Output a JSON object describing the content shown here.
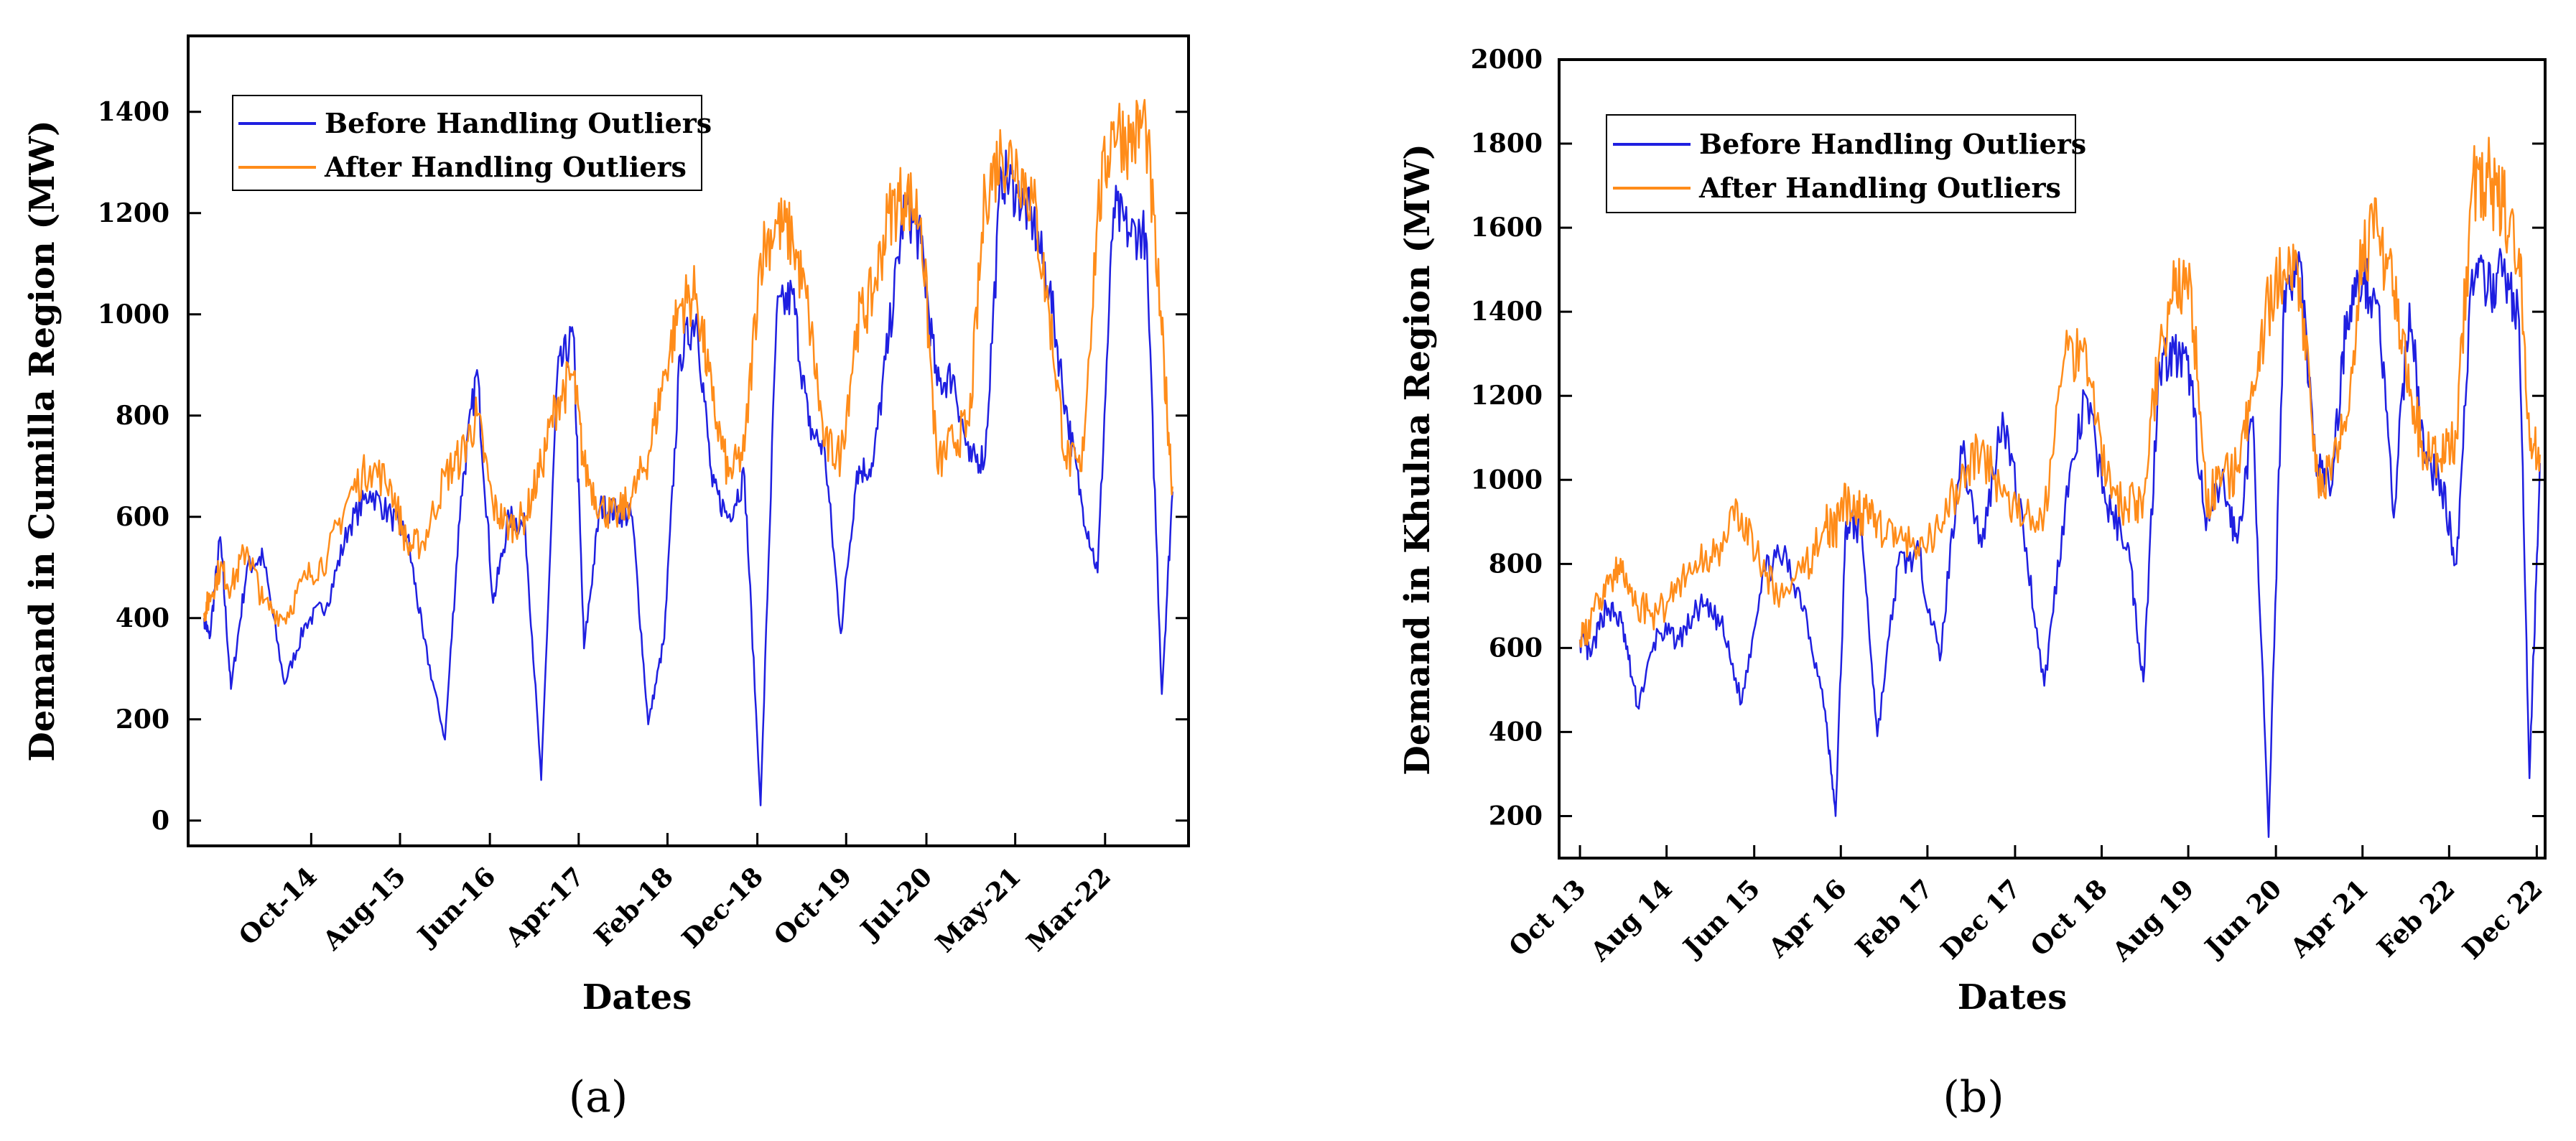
{
  "chart_data": [
    {
      "type": "line",
      "title": "",
      "caption": "(a)",
      "xlabel": "Dates",
      "ylabel": "Demand in Cumilla Region (MW)",
      "ylim": [
        -50,
        1550
      ],
      "yticks": [
        0,
        200,
        400,
        600,
        800,
        1000,
        1200,
        1400
      ],
      "xlim": [
        2013.6,
        2022.95
      ],
      "xtick_labels": [
        "Oct-14",
        "Aug-15",
        "Jun-16",
        "Apr-17",
        "Feb-18",
        "Dec-18",
        "Oct-19",
        "Jul-20",
        "May-21",
        "Mar-22"
      ],
      "xtick_positions": [
        2014.75,
        2015.58,
        2016.42,
        2017.25,
        2018.08,
        2018.92,
        2019.75,
        2020.5,
        2021.33,
        2022.17
      ],
      "legend_position": "top-left",
      "series": [
        {
          "name": "Before Handling Outliers",
          "color": "#1f1fe0",
          "x": [
            2013.75,
            2013.8,
            2013.9,
            2014.0,
            2014.15,
            2014.3,
            2014.5,
            2014.7,
            2014.9,
            2015.1,
            2015.3,
            2015.5,
            2015.65,
            2015.8,
            2016.0,
            2016.15,
            2016.3,
            2016.45,
            2016.6,
            2016.75,
            2016.9,
            2017.05,
            2017.2,
            2017.3,
            2017.45,
            2017.6,
            2017.75,
            2017.9,
            2018.05,
            2018.2,
            2018.35,
            2018.5,
            2018.65,
            2018.8,
            2018.95,
            2019.1,
            2019.25,
            2019.4,
            2019.55,
            2019.7,
            2019.85,
            2020.0,
            2020.15,
            2020.3,
            2020.45,
            2020.6,
            2020.75,
            2020.9,
            2021.05,
            2021.2,
            2021.35,
            2021.5,
            2021.65,
            2021.8,
            2021.95,
            2022.1,
            2022.25,
            2022.4,
            2022.55,
            2022.7,
            2022.8
          ],
          "y": [
            400,
            360,
            560,
            260,
            500,
            520,
            270,
            390,
            430,
            580,
            650,
            600,
            560,
            360,
            160,
            640,
            890,
            430,
            600,
            580,
            80,
            880,
            960,
            340,
            620,
            610,
            600,
            190,
            360,
            920,
            1000,
            660,
            600,
            680,
            30,
            1000,
            1040,
            780,
            730,
            370,
            690,
            700,
            960,
            1220,
            1140,
            860,
            880,
            710,
            720,
            1280,
            1240,
            1180,
            1050,
            820,
            630,
            490,
            1210,
            1160,
            1160,
            250,
            650
          ]
        },
        {
          "name": "After Handling Outliers",
          "color": "#ff8c1a",
          "x": [
            2013.75,
            2013.8,
            2013.9,
            2014.0,
            2014.15,
            2014.3,
            2014.5,
            2014.7,
            2014.9,
            2015.1,
            2015.3,
            2015.5,
            2015.65,
            2015.8,
            2016.0,
            2016.15,
            2016.3,
            2016.45,
            2016.6,
            2016.75,
            2016.9,
            2017.05,
            2017.2,
            2017.3,
            2017.45,
            2017.6,
            2017.75,
            2017.9,
            2018.05,
            2018.2,
            2018.35,
            2018.5,
            2018.65,
            2018.8,
            2018.95,
            2019.1,
            2019.25,
            2019.4,
            2019.55,
            2019.7,
            2019.85,
            2020.0,
            2020.15,
            2020.3,
            2020.45,
            2020.6,
            2020.75,
            2020.9,
            2021.05,
            2021.2,
            2021.35,
            2021.5,
            2021.65,
            2021.8,
            2021.95,
            2022.1,
            2022.25,
            2022.4,
            2022.55,
            2022.7,
            2022.8
          ],
          "y": [
            410,
            440,
            500,
            460,
            540,
            430,
            400,
            480,
            520,
            640,
            700,
            660,
            540,
            550,
            680,
            720,
            800,
            620,
            580,
            600,
            700,
            830,
            880,
            700,
            620,
            600,
            640,
            720,
            880,
            1020,
            1040,
            830,
            680,
            730,
            1120,
            1180,
            1150,
            1000,
            740,
            720,
            980,
            1040,
            1200,
            1240,
            1190,
            700,
            750,
            780,
            1240,
            1320,
            1300,
            1220,
            1000,
            720,
            690,
            1200,
            1380,
            1340,
            1380,
            960,
            660
          ]
        }
      ]
    },
    {
      "type": "line",
      "title": "",
      "caption": "(b)",
      "xlabel": "Dates",
      "ylabel": "Demand in Khulna Region (MW)",
      "ylim": [
        100,
        2000
      ],
      "yticks": [
        200,
        400,
        600,
        800,
        1000,
        1200,
        1400,
        1600,
        1800,
        2000
      ],
      "xlim": [
        2013.55,
        2023.0
      ],
      "xtick_labels": [
        "Oct 13",
        "Aug 14",
        "Jun 15",
        "Apr 16",
        "Feb 17",
        "Dec 17",
        "Oct 18",
        "Aug 19",
        "Jun 20",
        "Apr 21",
        "Feb 22",
        "Dec 22"
      ],
      "xtick_positions": [
        2013.75,
        2014.58,
        2015.42,
        2016.25,
        2017.08,
        2017.92,
        2018.75,
        2019.58,
        2020.42,
        2021.25,
        2022.08,
        2022.92
      ],
      "legend_position": "top-left",
      "series": [
        {
          "name": "Before Handling Outliers",
          "color": "#1f1fe0",
          "x": [
            2013.75,
            2013.85,
            2014.0,
            2014.15,
            2014.3,
            2014.5,
            2014.7,
            2014.9,
            2015.1,
            2015.3,
            2015.5,
            2015.7,
            2015.9,
            2016.1,
            2016.2,
            2016.3,
            2016.45,
            2016.6,
            2016.8,
            2017.0,
            2017.2,
            2017.4,
            2017.6,
            2017.8,
            2018.0,
            2018.2,
            2018.4,
            2018.6,
            2018.8,
            2019.0,
            2019.15,
            2019.3,
            2019.45,
            2019.6,
            2019.75,
            2019.9,
            2020.05,
            2020.2,
            2020.35,
            2020.5,
            2020.65,
            2020.8,
            2020.95,
            2021.1,
            2021.25,
            2021.4,
            2021.55,
            2021.7,
            2021.85,
            2022.0,
            2022.15,
            2022.3,
            2022.45,
            2022.6,
            2022.75,
            2022.85,
            2022.95
          ],
          "y": [
            620,
            580,
            700,
            660,
            460,
            640,
            620,
            700,
            660,
            470,
            780,
            820,
            700,
            450,
            200,
            900,
            880,
            390,
            800,
            820,
            570,
            1080,
            840,
            1160,
            880,
            510,
            940,
            1200,
            940,
            850,
            520,
            1280,
            1300,
            1250,
            880,
            1000,
            850,
            1150,
            150,
            1450,
            1520,
            1040,
            980,
            1400,
            1480,
            1420,
            910,
            1420,
            1040,
            1000,
            800,
            1500,
            1450,
            1500,
            1380,
            290,
            1040
          ]
        },
        {
          "name": "After Handling Outliers",
          "color": "#ff8c1a",
          "x": [
            2013.75,
            2013.85,
            2014.0,
            2014.15,
            2014.3,
            2014.5,
            2014.7,
            2014.9,
            2015.1,
            2015.3,
            2015.5,
            2015.7,
            2015.9,
            2016.1,
            2016.2,
            2016.3,
            2016.45,
            2016.6,
            2016.8,
            2017.0,
            2017.2,
            2017.4,
            2017.6,
            2017.8,
            2018.0,
            2018.2,
            2018.4,
            2018.6,
            2018.8,
            2019.0,
            2019.15,
            2019.3,
            2019.45,
            2019.6,
            2019.75,
            2019.9,
            2020.05,
            2020.2,
            2020.35,
            2020.5,
            2020.65,
            2020.8,
            2020.95,
            2021.1,
            2021.25,
            2021.4,
            2021.55,
            2021.7,
            2021.85,
            2022.0,
            2022.15,
            2022.3,
            2022.45,
            2022.6,
            2022.75,
            2022.85,
            2022.95
          ],
          "y": [
            620,
            650,
            760,
            780,
            700,
            680,
            760,
            800,
            850,
            920,
            780,
            720,
            780,
            900,
            880,
            950,
            920,
            900,
            860,
            820,
            880,
            1000,
            1080,
            960,
            900,
            920,
            1300,
            1320,
            1000,
            930,
            960,
            1300,
            1450,
            1480,
            950,
            1000,
            1020,
            1200,
            1420,
            1500,
            1480,
            1020,
            1000,
            1150,
            1560,
            1580,
            1450,
            1200,
            1060,
            1050,
            1100,
            1700,
            1720,
            1650,
            1550,
            1100,
            1060
          ]
        }
      ]
    }
  ]
}
